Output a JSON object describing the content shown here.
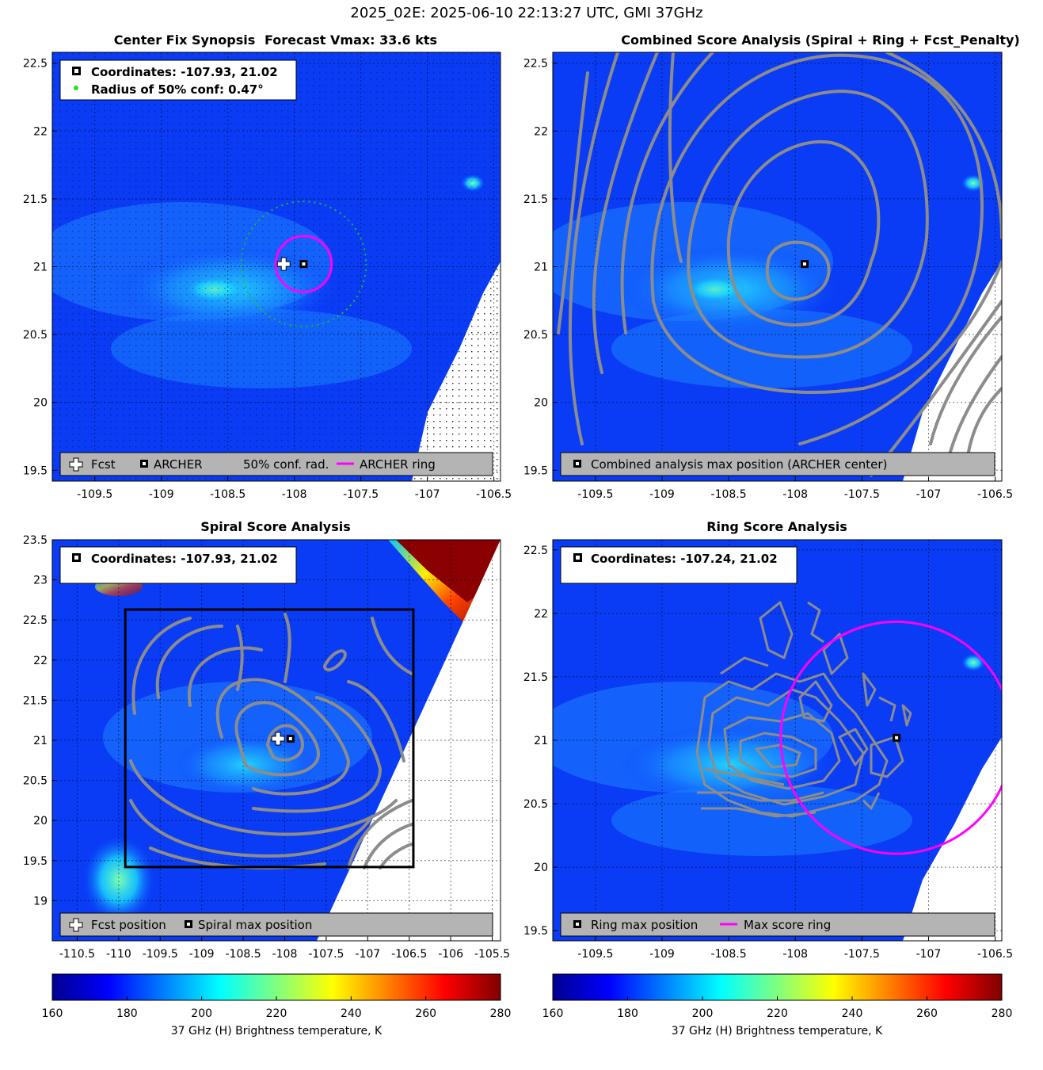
{
  "figure": {
    "title": "2025_02E: 2025-06-10 22:13:27 UTC, GMI 37GHz"
  },
  "colors": {
    "archer_ring": "#ff00ff",
    "conf_radius": "#22bb22",
    "contour": "#8c8c8c",
    "legend_bg": "#b4b4b4",
    "box": "#000000"
  },
  "chart_data": [
    {
      "type": "heatmap",
      "title": "Center Fix Synopsis",
      "subtitle": "Forecast Vmax: 33.6 kts",
      "x_ticks": [
        "-109.5",
        "-109",
        "-108.5",
        "-108",
        "-107.5",
        "-107",
        "-106.5"
      ],
      "x_tick_values": [
        -109.5,
        -109,
        -108.5,
        -108,
        -107.5,
        -107,
        -106.5
      ],
      "y_ticks": [
        "19.5",
        "20",
        "20.5",
        "21",
        "21.5",
        "22",
        "22.5"
      ],
      "y_tick_values": [
        19.5,
        20,
        20.5,
        21,
        21.5,
        22,
        22.5
      ],
      "xlim": [
        -109.82,
        -106.45
      ],
      "ylim": [
        19.42,
        22.58
      ],
      "info_box": [
        "Coordinates: -107.93, 21.02",
        "Radius of 50% conf: 0.47°"
      ],
      "legend": [
        "Fcst",
        "ARCHER",
        "50% conf. rad.",
        "ARCHER ring"
      ],
      "archer_center": [
        -107.93,
        21.02
      ],
      "forecast_position": [
        -108.08,
        21.02
      ],
      "confidence_radius_deg": 0.47,
      "archer_ring_radius_deg": 0.21
    },
    {
      "type": "heatmap",
      "title": "Combined Score Analysis (Spiral + Ring + Fcst_Penalty)",
      "x_ticks": [
        "-109.5",
        "-109",
        "-108.5",
        "-108",
        "-107.5",
        "-107",
        "-106.5"
      ],
      "x_tick_values": [
        -109.5,
        -109,
        -108.5,
        -108,
        -107.5,
        -107,
        -106.5
      ],
      "y_ticks": [
        "19.5",
        "20",
        "20.5",
        "21",
        "21.5",
        "22",
        "22.5"
      ],
      "y_tick_values": [
        19.5,
        20,
        20.5,
        21,
        21.5,
        22,
        22.5
      ],
      "xlim": [
        -109.82,
        -106.45
      ],
      "ylim": [
        19.42,
        22.58
      ],
      "legend": [
        "Combined analysis max position (ARCHER center)"
      ],
      "max_position": [
        -107.93,
        21.02
      ]
    },
    {
      "type": "heatmap",
      "title": "Spiral Score Analysis",
      "x_ticks": [
        "-110.5",
        "-110",
        "-109.5",
        "-109",
        "-108.5",
        "-108",
        "-107.5",
        "-107",
        "-106.5",
        "-106",
        "-105.5"
      ],
      "x_tick_values": [
        -110.5,
        -110,
        -109.5,
        -109,
        -108.5,
        -108,
        -107.5,
        -107,
        -106.5,
        -106,
        -105.5
      ],
      "y_ticks": [
        "19",
        "19.5",
        "20",
        "20.5",
        "21",
        "21.5",
        "22",
        "22.5",
        "23",
        "23.5"
      ],
      "y_tick_values": [
        19,
        19.5,
        20,
        20.5,
        21,
        21.5,
        22,
        22.5,
        23,
        23.5
      ],
      "xlim": [
        -110.8,
        -105.4
      ],
      "ylim": [
        18.5,
        23.5
      ],
      "info_box": [
        "Coordinates: -107.93, 21.02"
      ],
      "legend": [
        "Fcst position",
        "Spiral max position"
      ],
      "search_box": {
        "lon": [
          -109.92,
          -106.45
        ],
        "lat": [
          19.42,
          22.63
        ]
      },
      "max_position": [
        -107.93,
        21.02
      ],
      "forecast_position": [
        -108.08,
        21.02
      ]
    },
    {
      "type": "heatmap",
      "title": "Ring Score Analysis",
      "x_ticks": [
        "-109.5",
        "-109",
        "-108.5",
        "-108",
        "-107.5",
        "-107",
        "-106.5"
      ],
      "x_tick_values": [
        -109.5,
        -109,
        -108.5,
        -108,
        -107.5,
        -107,
        -106.5
      ],
      "y_ticks": [
        "19.5",
        "20",
        "20.5",
        "21",
        "21.5",
        "22",
        "22.5"
      ],
      "y_tick_values": [
        19.5,
        20,
        20.5,
        21,
        21.5,
        22,
        22.5
      ],
      "xlim": [
        -109.82,
        -106.45
      ],
      "ylim": [
        19.42,
        22.58
      ],
      "info_box": [
        "Coordinates: -107.24, 21.02"
      ],
      "legend": [
        "Ring max position",
        "Max score ring"
      ],
      "max_position": [
        -107.24,
        21.02
      ],
      "max_ring_radius_deg": 0.87
    }
  ],
  "colorbar": {
    "label": "37 GHz (H) Brightness temperature, K",
    "ticks": [
      "160",
      "180",
      "200",
      "220",
      "240",
      "260",
      "280"
    ],
    "tick_values": [
      160,
      180,
      200,
      220,
      240,
      260,
      280
    ],
    "range": [
      160,
      280
    ]
  }
}
